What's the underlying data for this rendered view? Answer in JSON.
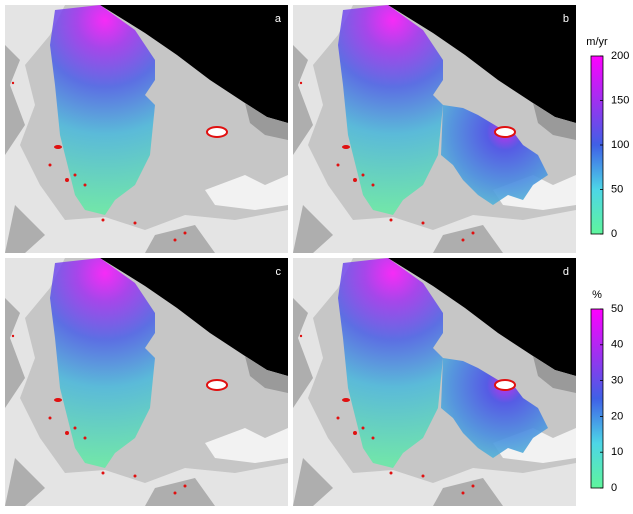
{
  "panels": [
    {
      "label": "a"
    },
    {
      "label": "b"
    },
    {
      "label": "c"
    },
    {
      "label": "d"
    }
  ],
  "colorbars": [
    {
      "unit": "m/yr",
      "lim": [
        0,
        200
      ],
      "ticks": [
        0,
        50,
        100,
        150,
        200
      ]
    },
    {
      "unit": "%",
      "lim": [
        0,
        50
      ],
      "ticks": [
        0,
        10,
        20,
        30,
        40,
        50
      ]
    }
  ]
}
